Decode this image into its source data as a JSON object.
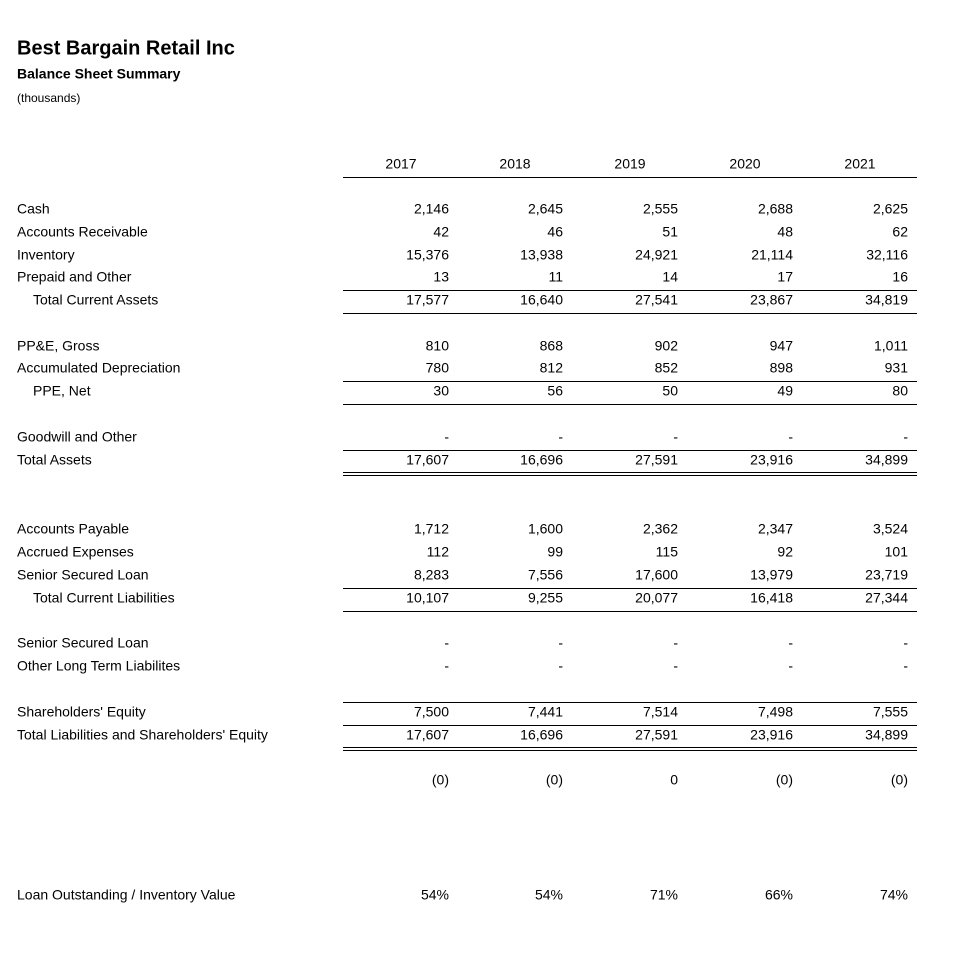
{
  "header": {
    "title": "Best Bargain Retail Inc",
    "subtitle": "Balance Sheet Summary",
    "units": "(thousands)"
  },
  "table": {
    "columns": [
      "2017",
      "2018",
      "2019",
      "2020",
      "2021"
    ],
    "rows": [
      {
        "label": "Cash",
        "values": [
          "2,146",
          "2,645",
          "2,555",
          "2,688",
          "2,625"
        ]
      },
      {
        "label": "Accounts Receivable",
        "values": [
          "42",
          "46",
          "51",
          "48",
          "62"
        ]
      },
      {
        "label": "Inventory",
        "values": [
          "15,376",
          "13,938",
          "24,921",
          "21,114",
          "32,116"
        ]
      },
      {
        "label": "Prepaid and Other",
        "values": [
          "13",
          "11",
          "14",
          "17",
          "16"
        ]
      },
      {
        "label": "Total Current Assets",
        "values": [
          "17,577",
          "16,640",
          "27,541",
          "23,867",
          "34,819"
        ]
      },
      {
        "label": "PP&E, Gross",
        "values": [
          "810",
          "868",
          "902",
          "947",
          "1,011"
        ]
      },
      {
        "label": "Accumulated Depreciation",
        "values": [
          "780",
          "812",
          "852",
          "898",
          "931"
        ]
      },
      {
        "label": "PPE, Net",
        "values": [
          "30",
          "56",
          "50",
          "49",
          "80"
        ]
      },
      {
        "label": "Goodwill and Other",
        "values": [
          "-",
          "-",
          "-",
          "-",
          "-"
        ]
      },
      {
        "label": "Total Assets",
        "values": [
          "17,607",
          "16,696",
          "27,591",
          "23,916",
          "34,899"
        ]
      },
      {
        "label": "Accounts Payable",
        "values": [
          "1,712",
          "1,600",
          "2,362",
          "2,347",
          "3,524"
        ]
      },
      {
        "label": "Accrued Expenses",
        "values": [
          "112",
          "99",
          "115",
          "92",
          "101"
        ]
      },
      {
        "label": "Senior Secured Loan",
        "values": [
          "8,283",
          "7,556",
          "17,600",
          "13,979",
          "23,719"
        ]
      },
      {
        "label": "Total Current Liabilities",
        "values": [
          "10,107",
          "9,255",
          "20,077",
          "16,418",
          "27,344"
        ]
      },
      {
        "label": "Senior Secured Loan",
        "values": [
          "-",
          "-",
          "-",
          "-",
          "-"
        ]
      },
      {
        "label": "Other Long Term Liabilites",
        "values": [
          "-",
          "-",
          "-",
          "-",
          "-"
        ]
      },
      {
        "label": "Shareholders' Equity",
        "values": [
          "7,500",
          "7,441",
          "7,514",
          "7,498",
          "7,555"
        ]
      },
      {
        "label": "Total Liabilities and Shareholders' Equity",
        "values": [
          "17,607",
          "16,696",
          "27,591",
          "23,916",
          "34,899"
        ]
      },
      {
        "label": null,
        "values": [
          "(0)",
          "(0)",
          "0",
          "(0)",
          "(0)"
        ]
      },
      {
        "label": "Loan Outstanding / Inventory Value",
        "values": [
          "54%",
          "54%",
          "71%",
          "66%",
          "74%"
        ]
      }
    ]
  }
}
